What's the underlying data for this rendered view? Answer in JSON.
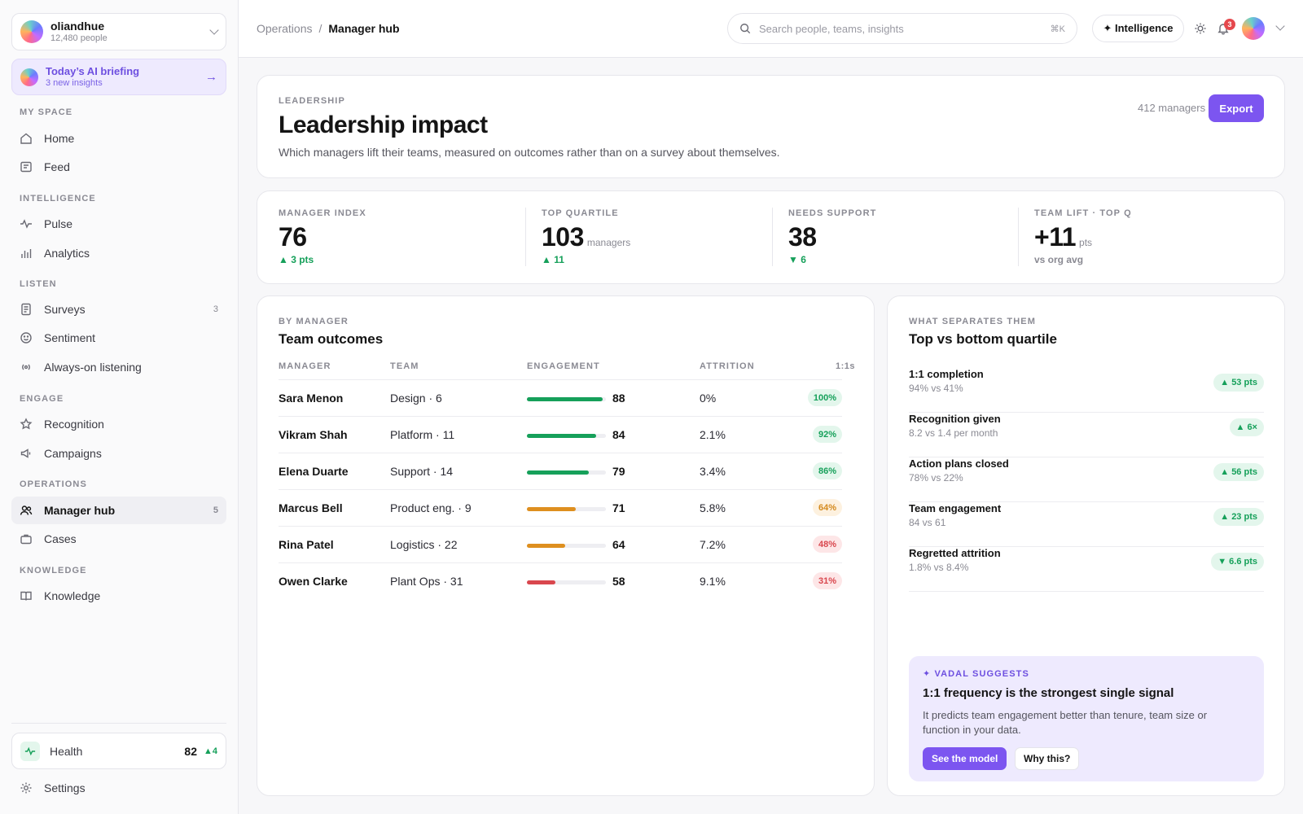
{
  "org": {
    "name": "oliandhue",
    "people": "12,480 people"
  },
  "briefing": {
    "title": "Today’s AI briefing",
    "sub": "3 new insights"
  },
  "sidebar": {
    "sections": {
      "my_space": "MY SPACE",
      "intelligence": "INTELLIGENCE",
      "listen": "LISTEN",
      "engage": "ENGAGE",
      "operations": "OPERATIONS",
      "knowledge": "KNOWLEDGE"
    },
    "items": {
      "home": "Home",
      "feed": "Feed",
      "pulse": "Pulse",
      "analytics": "Analytics",
      "surveys": "Surveys",
      "surveys_count": "3",
      "sentiment": "Sentiment",
      "listening": "Always-on listening",
      "recognition": "Recognition",
      "campaigns": "Campaigns",
      "manager_hub": "Manager hub",
      "manager_hub_count": "5",
      "cases": "Cases",
      "knowledge": "Knowledge"
    },
    "health": {
      "label": "Health",
      "value": "82",
      "delta": "▲4"
    },
    "settings": "Settings"
  },
  "topbar": {
    "crumb_parent": "Operations",
    "crumb_sep": "/",
    "crumb_current": "Manager hub",
    "search_placeholder": "Search people, teams, insights",
    "search_shortcut": "⌘K",
    "intelligence": "✦ Intelligence",
    "notifications": "3"
  },
  "hero": {
    "eyebrow": "LEADERSHIP",
    "title": "Leadership impact",
    "desc": "Which managers lift their teams, measured on outcomes rather than on a survey about themselves.",
    "count": "412 managers",
    "export": "Export"
  },
  "kpis": {
    "index": {
      "label": "MANAGER INDEX",
      "value": "76",
      "delta": "▲ 3 pts"
    },
    "top": {
      "label": "TOP QUARTILE",
      "value": "103",
      "unit": "managers",
      "delta": "▲ 11"
    },
    "support": {
      "label": "NEEDS SUPPORT",
      "value": "38",
      "delta": "▼ 6"
    },
    "lift": {
      "label": "TEAM LIFT · TOP Q",
      "value": "+11",
      "unit": "pts",
      "note": "vs org avg"
    }
  },
  "table": {
    "eyebrow": "BY MANAGER",
    "title": "Team outcomes",
    "headers": {
      "manager": "MANAGER",
      "team": "TEAM",
      "engagement": "ENGAGEMENT",
      "attrition": "ATTRITION",
      "ones": "1:1s"
    },
    "rows": [
      {
        "name": "Sara Menon",
        "team": "Design · 6",
        "engagement": "88",
        "attrition": "0%",
        "ones": "100%"
      },
      {
        "name": "Vikram Shah",
        "team": "Platform · 11",
        "engagement": "84",
        "attrition": "2.1%",
        "ones": "92%"
      },
      {
        "name": "Elena Duarte",
        "team": "Support · 14",
        "engagement": "79",
        "attrition": "3.4%",
        "ones": "86%"
      },
      {
        "name": "Marcus Bell",
        "team": "Product eng. · 9",
        "engagement": "71",
        "attrition": "5.8%",
        "ones": "64%"
      },
      {
        "name": "Rina Patel",
        "team": "Logistics · 22",
        "engagement": "64",
        "attrition": "7.2%",
        "ones": "48%"
      },
      {
        "name": "Owen Clarke",
        "team": "Plant Ops · 31",
        "engagement": "58",
        "attrition": "9.1%",
        "ones": "31%"
      }
    ]
  },
  "colors": {
    "good": "#16a05a",
    "warn": "#de8f1f",
    "bad": "#d9474e",
    "accent": "#7c55f0"
  },
  "drivers": {
    "eyebrow": "WHAT SEPARATES THEM",
    "title": "Top vs bottom quartile",
    "items": [
      {
        "title": "1:1 completion",
        "sub": "94% vs 41%",
        "delta": "▲ 53 pts"
      },
      {
        "title": "Recognition given",
        "sub": "8.2 vs 1.4 per month",
        "delta": "▲ 6×"
      },
      {
        "title": "Action plans closed",
        "sub": "78% vs 22%",
        "delta": "▲ 56 pts"
      },
      {
        "title": "Team engagement",
        "sub": "84 vs 61",
        "delta": "▲ 23 pts"
      },
      {
        "title": "Regretted attrition",
        "sub": "1.8% vs 8.4%",
        "delta": "▼ 6.6 pts"
      }
    ]
  },
  "suggestion": {
    "eyebrow": "✦ VADAL SUGGESTS",
    "title": "1:1 frequency is the strongest single signal",
    "body": "It predicts team engagement better than tenure, team size or function in your data.",
    "primary": "See the model",
    "secondary": "Why this?"
  }
}
